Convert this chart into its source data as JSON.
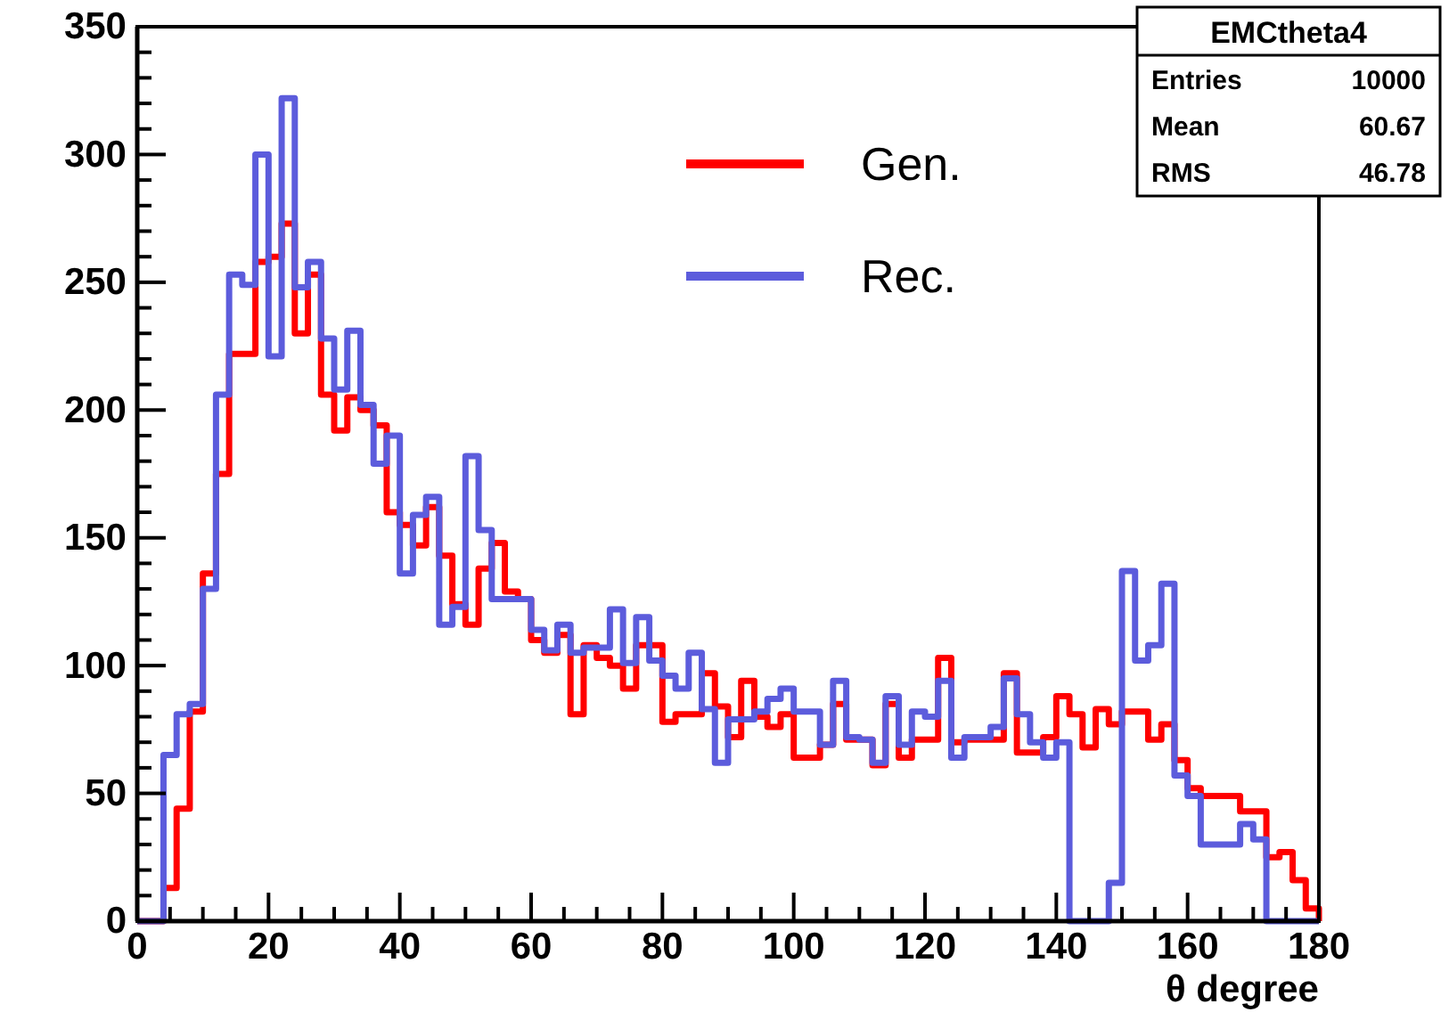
{
  "chart_data": {
    "type": "histogram",
    "xlabel": "θ degree",
    "bins": [
      0,
      2,
      4,
      6,
      8,
      10,
      12,
      14,
      16,
      18,
      20,
      22,
      24,
      26,
      28,
      30,
      32,
      34,
      36,
      38,
      40,
      42,
      44,
      46,
      48,
      50,
      52,
      54,
      56,
      58,
      60,
      62,
      64,
      66,
      68,
      70,
      72,
      74,
      76,
      78,
      80,
      82,
      84,
      86,
      88,
      90,
      92,
      94,
      96,
      98,
      100,
      102,
      104,
      106,
      108,
      110,
      112,
      114,
      116,
      118,
      120,
      122,
      124,
      126,
      128,
      130,
      132,
      134,
      136,
      138,
      140,
      142,
      144,
      146,
      148,
      150,
      152,
      154,
      156,
      158,
      160,
      162,
      164,
      166,
      168,
      170,
      172,
      174,
      176,
      178,
      180
    ],
    "series": [
      {
        "name": "Gen.",
        "color": "#ff0000",
        "values": [
          0,
          0,
          13,
          44,
          82,
          136,
          175,
          222,
          222,
          258,
          260,
          273,
          230,
          253,
          206,
          192,
          205,
          200,
          194,
          160,
          155,
          147,
          162,
          143,
          124,
          116,
          138,
          148,
          129,
          126,
          110,
          105,
          112,
          81,
          108,
          103,
          100,
          91,
          108,
          108,
          78,
          81,
          81,
          97,
          84,
          72,
          94,
          80,
          76,
          81,
          64,
          64,
          69,
          85,
          71,
          71,
          61,
          85,
          64,
          71,
          71,
          103,
          70,
          71,
          71,
          71,
          97,
          66,
          66,
          72,
          88,
          81,
          68,
          83,
          77,
          82,
          82,
          71,
          77,
          63,
          52,
          49,
          49,
          49,
          43,
          43,
          25,
          27,
          16,
          5
        ]
      },
      {
        "name": "Rec.",
        "color": "#5c5cdc",
        "values": [
          0,
          0,
          65,
          81,
          85,
          130,
          206,
          253,
          249,
          300,
          221,
          322,
          248,
          258,
          228,
          208,
          231,
          202,
          179,
          190,
          136,
          159,
          166,
          116,
          123,
          182,
          153,
          126,
          126,
          126,
          114,
          106,
          116,
          105,
          107,
          107,
          122,
          101,
          119,
          102,
          96,
          91,
          105,
          83,
          62,
          79,
          79,
          82,
          87,
          91,
          82,
          82,
          69,
          94,
          72,
          71,
          62,
          88,
          69,
          82,
          80,
          94,
          64,
          72,
          72,
          76,
          95,
          81,
          70,
          64,
          70,
          0,
          0,
          0,
          15,
          137,
          102,
          108,
          132,
          57,
          49,
          30,
          30,
          30,
          38,
          32,
          0,
          0,
          0,
          0
        ]
      }
    ],
    "xlim": [
      0,
      180
    ],
    "xticks": [
      0,
      {
        "value": 5,
        "label": null
      },
      {
        "value": 10,
        "label": null
      },
      {
        "value": 15,
        "label": null
      },
      20,
      {
        "value": 25,
        "label": null
      },
      {
        "value": 30,
        "label": null
      },
      {
        "value": 35,
        "label": null
      },
      40,
      {
        "value": 45,
        "label": null
      },
      {
        "value": 50,
        "label": null
      },
      {
        "value": 55,
        "label": null
      },
      60,
      {
        "value": 65,
        "label": null
      },
      {
        "value": 70,
        "label": null
      },
      {
        "value": 75,
        "label": null
      },
      80,
      {
        "value": 85,
        "label": null
      },
      {
        "value": 90,
        "label": null
      },
      {
        "value": 95,
        "label": null
      },
      100,
      {
        "value": 105,
        "label": null
      },
      {
        "value": 110,
        "label": null
      },
      {
        "value": 115,
        "label": null
      },
      120,
      {
        "value": 125,
        "label": null
      },
      {
        "value": 130,
        "label": null
      },
      {
        "value": 135,
        "label": null
      },
      140,
      {
        "value": 145,
        "label": null
      },
      {
        "value": 150,
        "label": null
      },
      {
        "value": 155,
        "label": null
      },
      160,
      {
        "value": 165,
        "label": null
      },
      {
        "value": 170,
        "label": null
      },
      {
        "value": 175,
        "label": null
      },
      180
    ],
    "ylim": [
      0,
      350
    ],
    "yticks": [
      0,
      {
        "value": 10,
        "label": null
      },
      {
        "value": 20,
        "label": null
      },
      {
        "value": 30,
        "label": null
      },
      {
        "value": 40,
        "label": null
      },
      50,
      {
        "value": 60,
        "label": null
      },
      {
        "value": 70,
        "label": null
      },
      {
        "value": 80,
        "label": null
      },
      {
        "value": 90,
        "label": null
      },
      100,
      {
        "value": 110,
        "label": null
      },
      {
        "value": 120,
        "label": null
      },
      {
        "value": 130,
        "label": null
      },
      {
        "value": 140,
        "label": null
      },
      150,
      {
        "value": 160,
        "label": null
      },
      {
        "value": 170,
        "label": null
      },
      {
        "value": 180,
        "label": null
      },
      {
        "value": 190,
        "label": null
      },
      200,
      {
        "value": 210,
        "label": null
      },
      {
        "value": 220,
        "label": null
      },
      {
        "value": 230,
        "label": null
      },
      {
        "value": 240,
        "label": null
      },
      250,
      {
        "value": 260,
        "label": null
      },
      {
        "value": 270,
        "label": null
      },
      {
        "value": 280,
        "label": null
      },
      {
        "value": 290,
        "label": null
      },
      300,
      {
        "value": 310,
        "label": null
      },
      {
        "value": 320,
        "label": null
      },
      {
        "value": 330,
        "label": null
      },
      {
        "value": 340,
        "label": null
      },
      350
    ],
    "legend": "top",
    "annotations": [
      "EMCtheta4",
      "Entries 10000",
      "Mean 60.67",
      "RMS 46.78"
    ]
  }
}
